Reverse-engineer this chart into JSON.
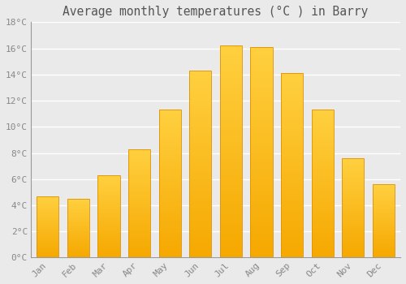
{
  "title": "Average monthly temperatures (°C ) in Barry",
  "months": [
    "Jan",
    "Feb",
    "Mar",
    "Apr",
    "May",
    "Jun",
    "Jul",
    "Aug",
    "Sep",
    "Oct",
    "Nov",
    "Dec"
  ],
  "temperatures": [
    4.7,
    4.5,
    6.3,
    8.3,
    11.3,
    14.3,
    16.2,
    16.1,
    14.1,
    11.3,
    7.6,
    5.6
  ],
  "bar_color_bottom": "#F5A800",
  "bar_color_top": "#FFD040",
  "bar_edge_color": "#E09000",
  "background_color": "#EAEAEA",
  "grid_color": "#FFFFFF",
  "text_color": "#888888",
  "title_color": "#555555",
  "ylim": [
    0,
    18
  ],
  "yticks": [
    0,
    2,
    4,
    6,
    8,
    10,
    12,
    14,
    16,
    18
  ],
  "bar_width": 0.72,
  "title_fontsize": 10.5,
  "tick_fontsize": 8
}
